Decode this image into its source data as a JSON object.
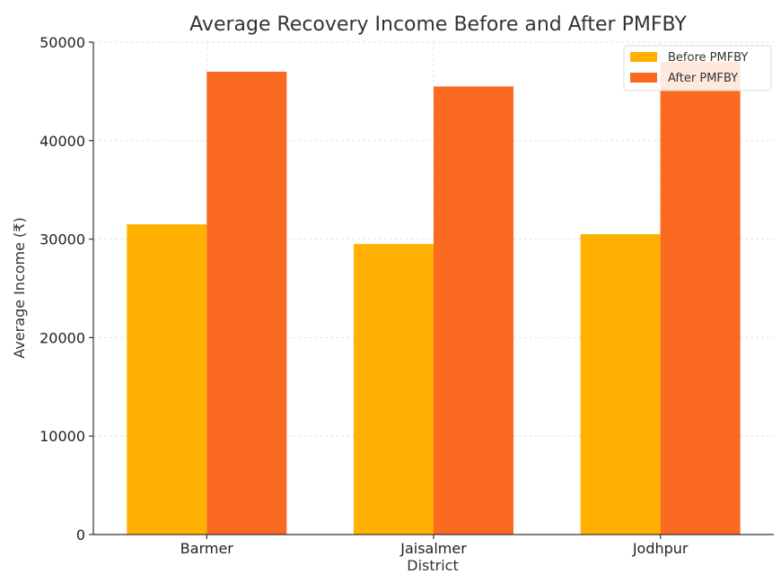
{
  "chart_data": {
    "type": "bar",
    "title": "Average Recovery Income Before and After PMFBY",
    "xlabel": "District",
    "ylabel": "Average Income (₹)",
    "categories": [
      "Barmer",
      "Jaisalmer",
      "Jodhpur"
    ],
    "series": [
      {
        "name": "Before PMFBY",
        "color": "#ffb000",
        "values": [
          31500,
          29500,
          30500
        ]
      },
      {
        "name": "After PMFBY",
        "color": "#fa6a20",
        "values": [
          47000,
          45500,
          48000
        ]
      }
    ],
    "ylim": [
      0,
      50000
    ],
    "yticks": [
      0,
      10000,
      20000,
      30000,
      40000,
      50000
    ],
    "grid": true,
    "legend_position": "top-right"
  }
}
